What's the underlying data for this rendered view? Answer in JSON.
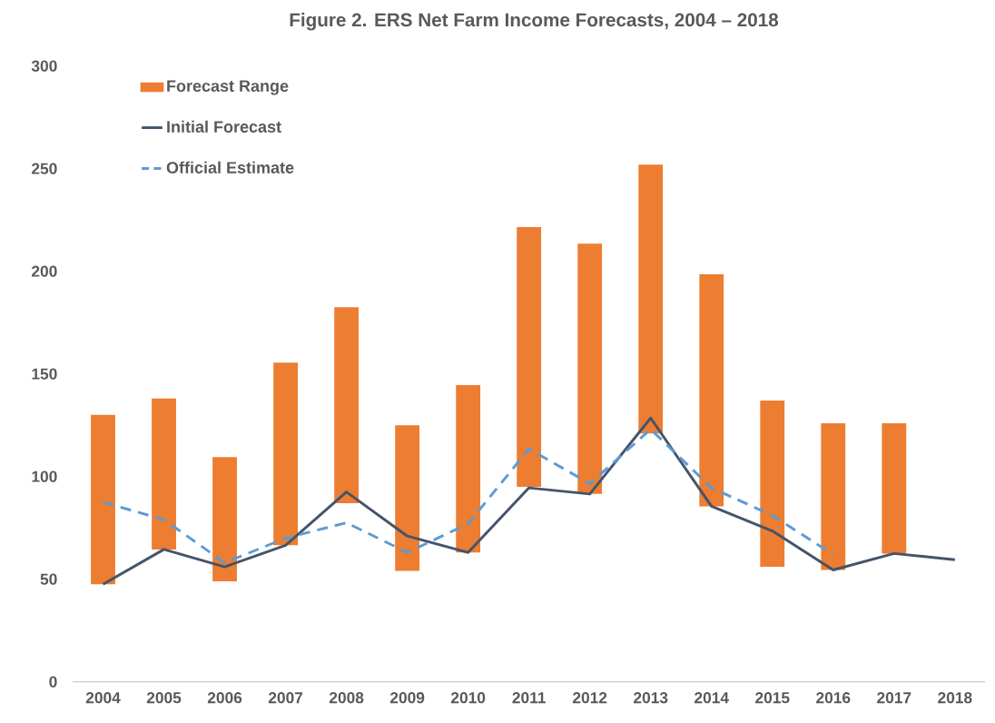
{
  "chart_data": {
    "type": "bar",
    "title": "Figure 2. ERS Net Farm Income Forecasts, 2004 – 2018",
    "categories": [
      "2004",
      "2005",
      "2006",
      "2007",
      "2008",
      "2009",
      "2010",
      "2011",
      "2012",
      "2013",
      "2014",
      "2015",
      "2016",
      "2017",
      "2018"
    ],
    "series": [
      {
        "name": "Forecast Range",
        "color": "#ed7d31",
        "base": [
          47.5,
          64.5,
          49,
          66.5,
          87,
          54,
          63,
          95,
          91.5,
          121,
          85.5,
          56,
          54.5,
          62.5,
          null
        ],
        "values": [
          82.5,
          73.5,
          60.5,
          89,
          95.5,
          71,
          81.5,
          126.5,
          122,
          131,
          113,
          81,
          71.5,
          63.5,
          null
        ]
      },
      {
        "name": "Initial Forecast",
        "type": "line",
        "color": "#44546a",
        "line_style": "solid",
        "values": [
          47.5,
          64.5,
          56,
          66.5,
          92.5,
          71,
          63,
          94.5,
          91.5,
          128.5,
          85.5,
          73.5,
          54.5,
          62.5,
          59.5
        ]
      },
      {
        "name": "Official Estimate",
        "type": "line",
        "color": "#5b9bd5",
        "line_style": "dashed",
        "values": [
          87.5,
          79,
          58,
          70,
          77.5,
          63,
          77,
          113.5,
          96.5,
          123,
          94.5,
          81,
          62,
          null,
          null
        ]
      }
    ],
    "ylim": [
      0,
      300
    ],
    "yticks": [
      0,
      50,
      100,
      150,
      200,
      250,
      300
    ],
    "grid": false,
    "legend": "top left",
    "marker": "none"
  }
}
